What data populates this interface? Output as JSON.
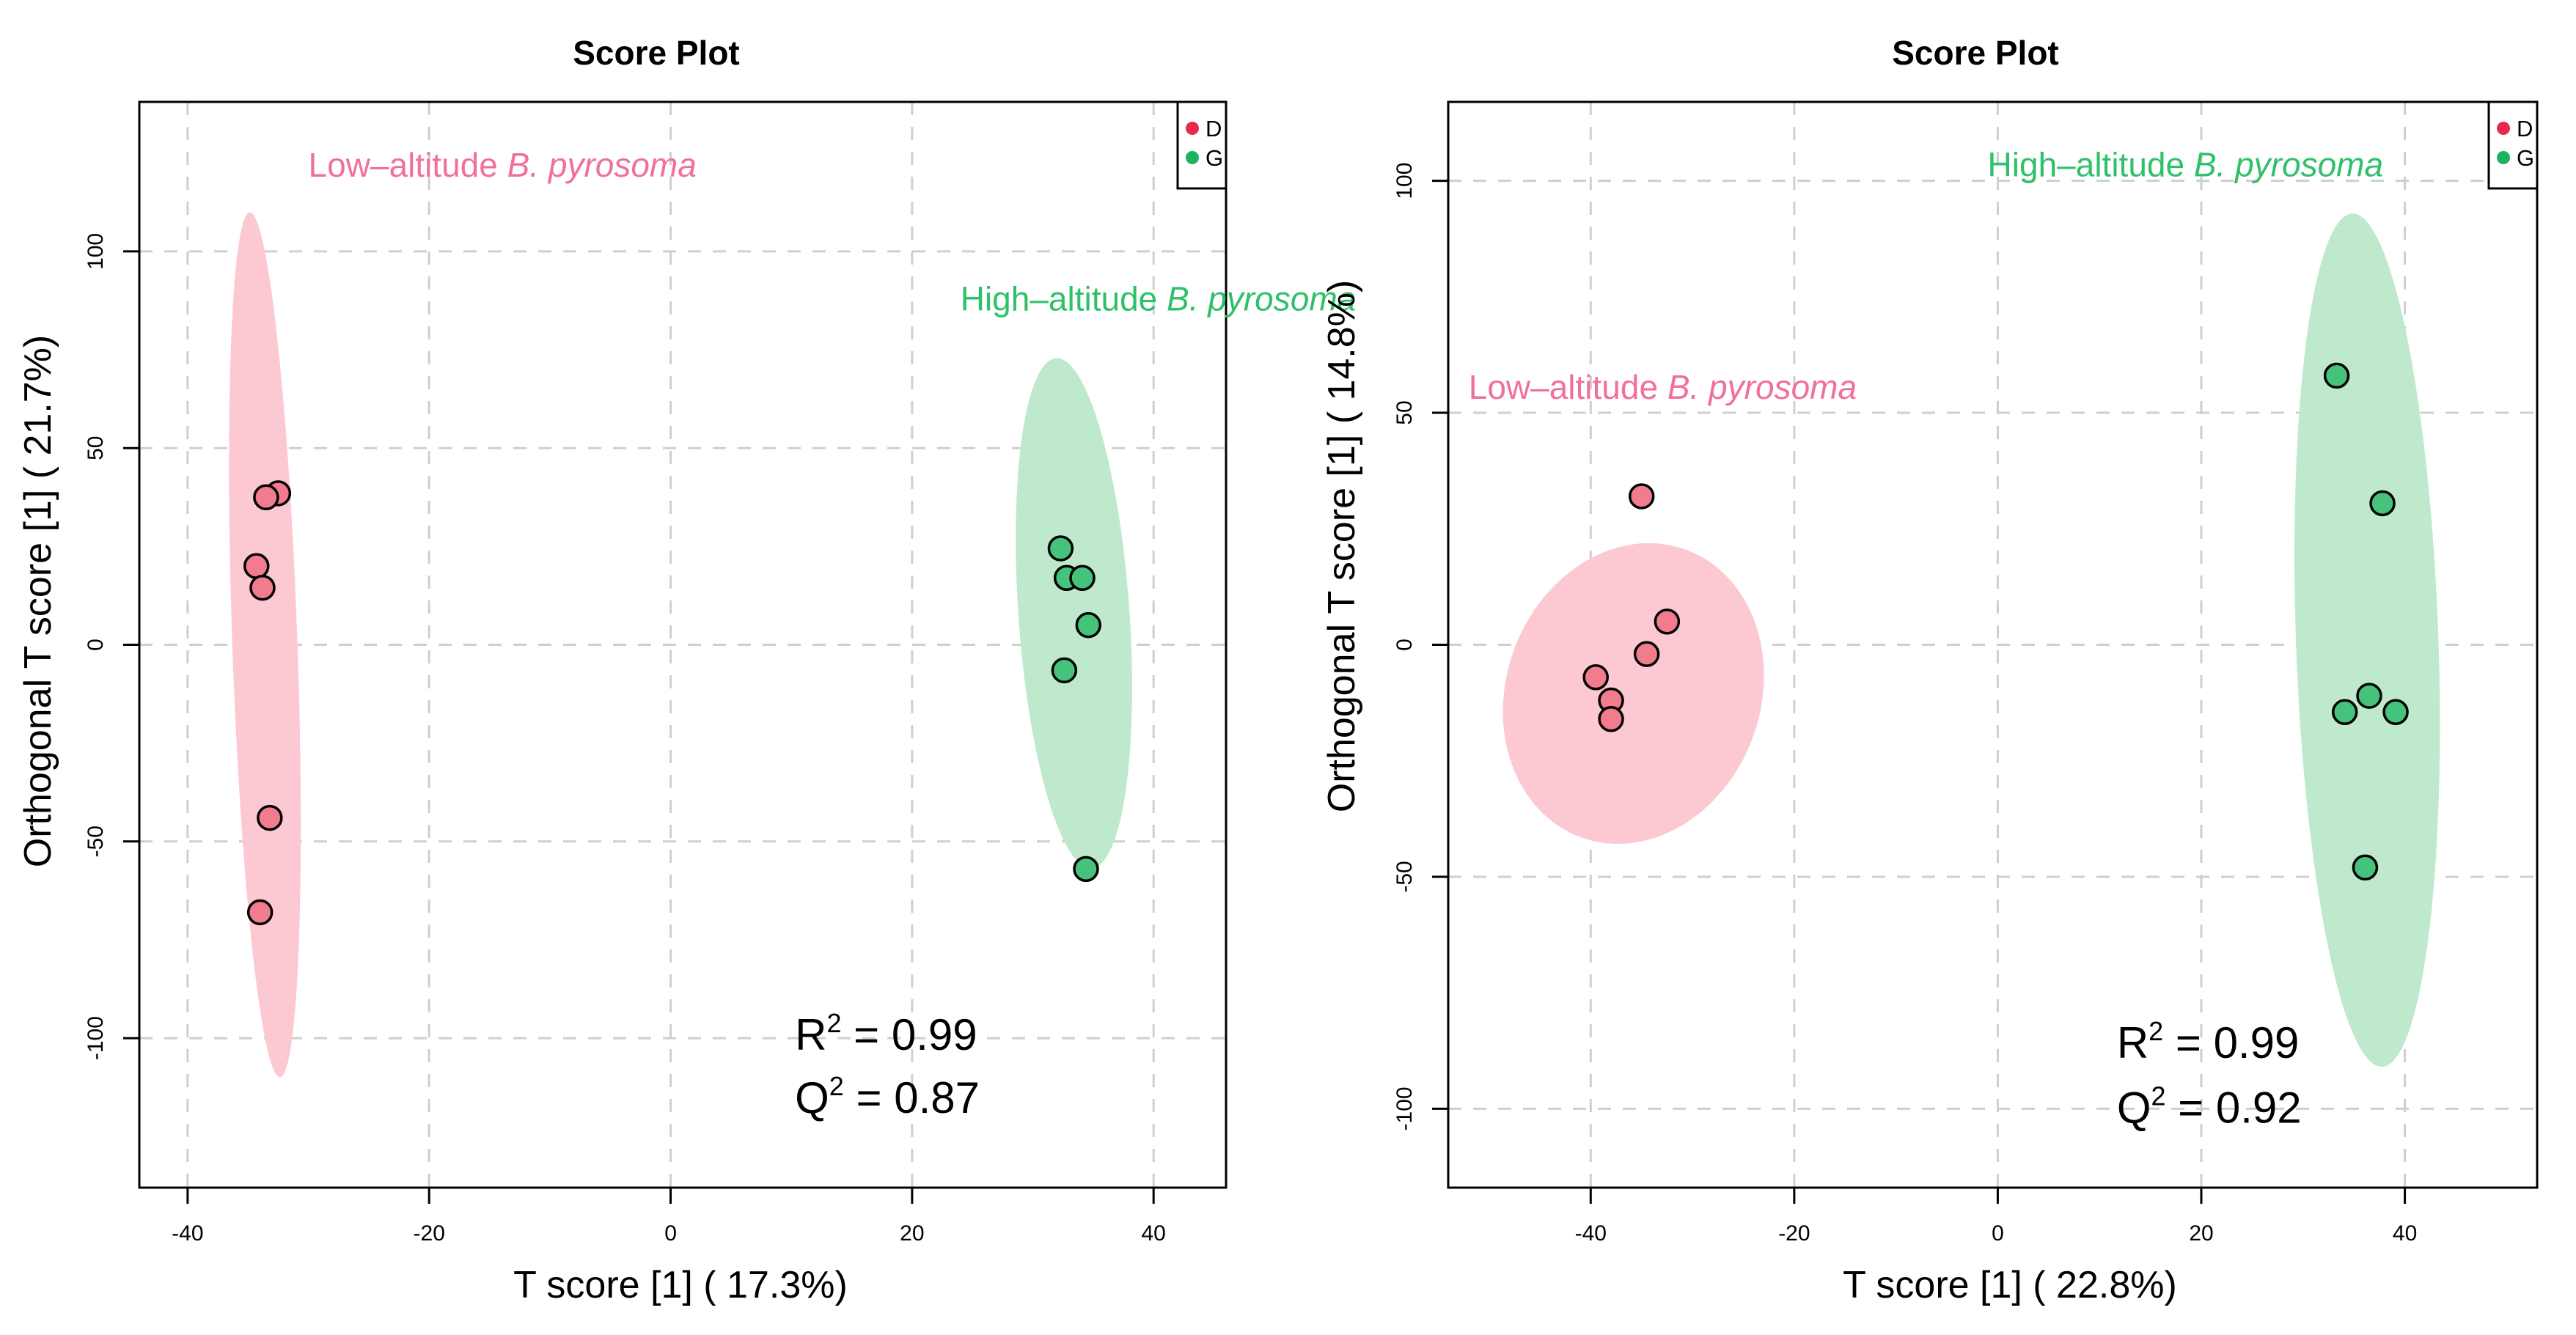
{
  "colors": {
    "d_point": "#f07c8d",
    "g_point": "#45c27b",
    "d_ellipse": "#fcc9d3",
    "g_ellipse": "#bfe9cd",
    "d_label": "#f0709a",
    "g_label": "#2fc06a",
    "legend_d": "#e8284e",
    "legend_g": "#1db25d",
    "grid": "#cfcfcf",
    "axis": "#000000"
  },
  "chart_data": [
    {
      "type": "scatter",
      "title": "Score Plot",
      "xlabel": "T score [1] ( 17.3%)",
      "ylabel": "Orthogonal T score [1] ( 21.7%)",
      "xlim": [
        -44,
        46
      ],
      "ylim": [
        -138,
        138
      ],
      "xticks": [
        -40,
        -20,
        0,
        20,
        40
      ],
      "xtick_labels": [
        "-40",
        "-20",
        "0",
        "20",
        "40"
      ],
      "yticks": [
        -100,
        -50,
        0,
        50,
        100
      ],
      "ytick_labels": [
        "-100",
        "-50",
        "0",
        "50",
        "100"
      ],
      "grid": true,
      "legend": {
        "position": "top-right",
        "entries": [
          {
            "name": "D",
            "color_key": "legend_d"
          },
          {
            "name": "G",
            "color_key": "legend_g"
          }
        ]
      },
      "annotations": {
        "low_group": {
          "prefix": "Low–altitude ",
          "italic": "B. pyrosoma",
          "x": -30,
          "y": 119
        },
        "high_group": {
          "prefix": "High–altitude ",
          "italic": "B. pyrosoma",
          "x": 24,
          "y": 85
        },
        "r2": {
          "symbol": "R",
          "sup": "2",
          "value": " = 0.99",
          "x": 10.3,
          "y": -103
        },
        "q2": {
          "symbol": "Q",
          "sup": "2",
          "value": " = 0.87",
          "x": 10.3,
          "y": -119
        }
      },
      "ellipses": [
        {
          "group": "D",
          "cx": -33.6,
          "cy": 0,
          "rx": 2.7,
          "ry": 110,
          "rotate": -2
        },
        {
          "group": "G",
          "cx": 33.4,
          "cy": 8,
          "rx": 4.6,
          "ry": 65,
          "rotate": -4
        }
      ],
      "series": [
        {
          "name": "D",
          "x": [
            -32.5,
            -33.5,
            -34.3,
            -33.8,
            -33.2,
            -34.0
          ],
          "y": [
            38.5,
            37.5,
            20,
            14.5,
            -44,
            -68
          ]
        },
        {
          "name": "G",
          "x": [
            32.3,
            32.8,
            34.1,
            34.6,
            32.6,
            34.4
          ],
          "y": [
            24.5,
            17,
            17,
            5,
            -6.5,
            -57
          ]
        }
      ]
    },
    {
      "type": "scatter",
      "title": "Score Plot",
      "xlabel": "T score [1] ( 22.8%)",
      "ylabel": "Orthogonal T score [1] ( 14.8%)",
      "xlim": [
        -54,
        53
      ],
      "ylim": [
        -117,
        117
      ],
      "xticks": [
        -40,
        -20,
        0,
        20,
        40
      ],
      "xtick_labels": [
        "-40",
        "-20",
        "0",
        "20",
        "40"
      ],
      "yticks": [
        -100,
        -50,
        0,
        50,
        100
      ],
      "ytick_labels": [
        "-100",
        "-50",
        "0",
        "50",
        "100"
      ],
      "grid": true,
      "legend": {
        "position": "top-right",
        "entries": [
          {
            "name": "D",
            "color_key": "legend_d"
          },
          {
            "name": "G",
            "color_key": "legend_g"
          }
        ]
      },
      "annotations": {
        "low_group": {
          "prefix": "Low–altitude ",
          "italic": "B. pyrosoma",
          "x": -52,
          "y": 53
        },
        "high_group": {
          "prefix": "High–altitude ",
          "italic": "B. pyrosoma",
          "x": -1,
          "y": 101
        },
        "r2": {
          "symbol": "R",
          "sup": "2",
          "value": " = 0.99",
          "x": 11.7,
          "y": -89
        },
        "q2": {
          "symbol": "Q",
          "sup": "2",
          "value": " = 0.92",
          "x": 11.7,
          "y": -103
        }
      },
      "ellipses": [
        {
          "group": "D",
          "cx": -35.8,
          "cy": -10.5,
          "rx": 12.5,
          "ry": 33,
          "rotate": 20
        },
        {
          "group": "G",
          "cx": 36.3,
          "cy": 1,
          "rx": 7,
          "ry": 92,
          "rotate": -2
        }
      ],
      "series": [
        {
          "name": "D",
          "x": [
            -35,
            -32.5,
            -34.5,
            -39.5,
            -38,
            -38
          ],
          "y": [
            32,
            5,
            -2,
            -7,
            -12,
            -16
          ]
        },
        {
          "name": "G",
          "x": [
            33.3,
            37.8,
            36.5,
            34.1,
            39.1,
            36.1
          ],
          "y": [
            58,
            30.5,
            -11,
            -14.5,
            -14.5,
            -48
          ]
        }
      ]
    }
  ]
}
